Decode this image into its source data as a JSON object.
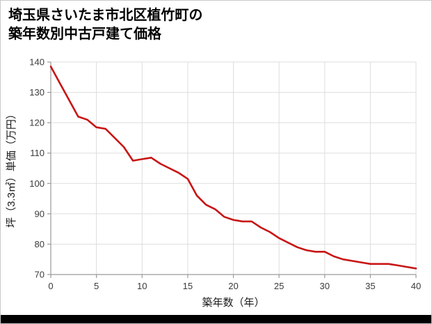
{
  "title": {
    "line1": "埼玉県さいたま市北区植竹町の",
    "line2": "築年数別中古戸建て価格"
  },
  "colors": {
    "line": "#c81414",
    "grid": "#dddddd",
    "axis": "#9a9a9a",
    "tick_text": "#3a3a3a",
    "label_text": "#1a1a1a",
    "bottom_bar": "#000000"
  },
  "chart_data": {
    "type": "line",
    "title": "埼玉県さいたま市北区植竹町の築年数別中古戸建て価格",
    "xlabel": "築年数（年）",
    "ylabel": "坪（3.3㎡）単価（万円）",
    "xlim": [
      0,
      40
    ],
    "ylim": [
      70,
      140
    ],
    "xticks": [
      0,
      5,
      10,
      15,
      20,
      25,
      30,
      35,
      40
    ],
    "yticks": [
      70,
      80,
      90,
      100,
      110,
      120,
      130,
      140
    ],
    "grid": true,
    "legend_position": "none",
    "line_color": "#c81414",
    "x": [
      0,
      1,
      2,
      3,
      4,
      5,
      6,
      7,
      8,
      9,
      10,
      11,
      12,
      13,
      14,
      15,
      16,
      17,
      18,
      19,
      20,
      21,
      22,
      23,
      24,
      25,
      26,
      27,
      28,
      29,
      30,
      31,
      32,
      33,
      34,
      35,
      36,
      37,
      38,
      39,
      40
    ],
    "values": [
      138.5,
      133,
      127.5,
      122,
      121,
      118.5,
      118,
      115,
      112,
      107.5,
      108,
      108.5,
      106.5,
      105,
      103.5,
      101.5,
      96,
      93,
      91.5,
      89,
      88,
      87.5,
      87.5,
      85.5,
      84,
      82,
      80.5,
      79,
      78,
      77.5,
      77.5,
      76,
      75,
      74.5,
      74,
      73.5,
      73.5,
      73.5,
      73,
      72.5,
      72
    ]
  }
}
